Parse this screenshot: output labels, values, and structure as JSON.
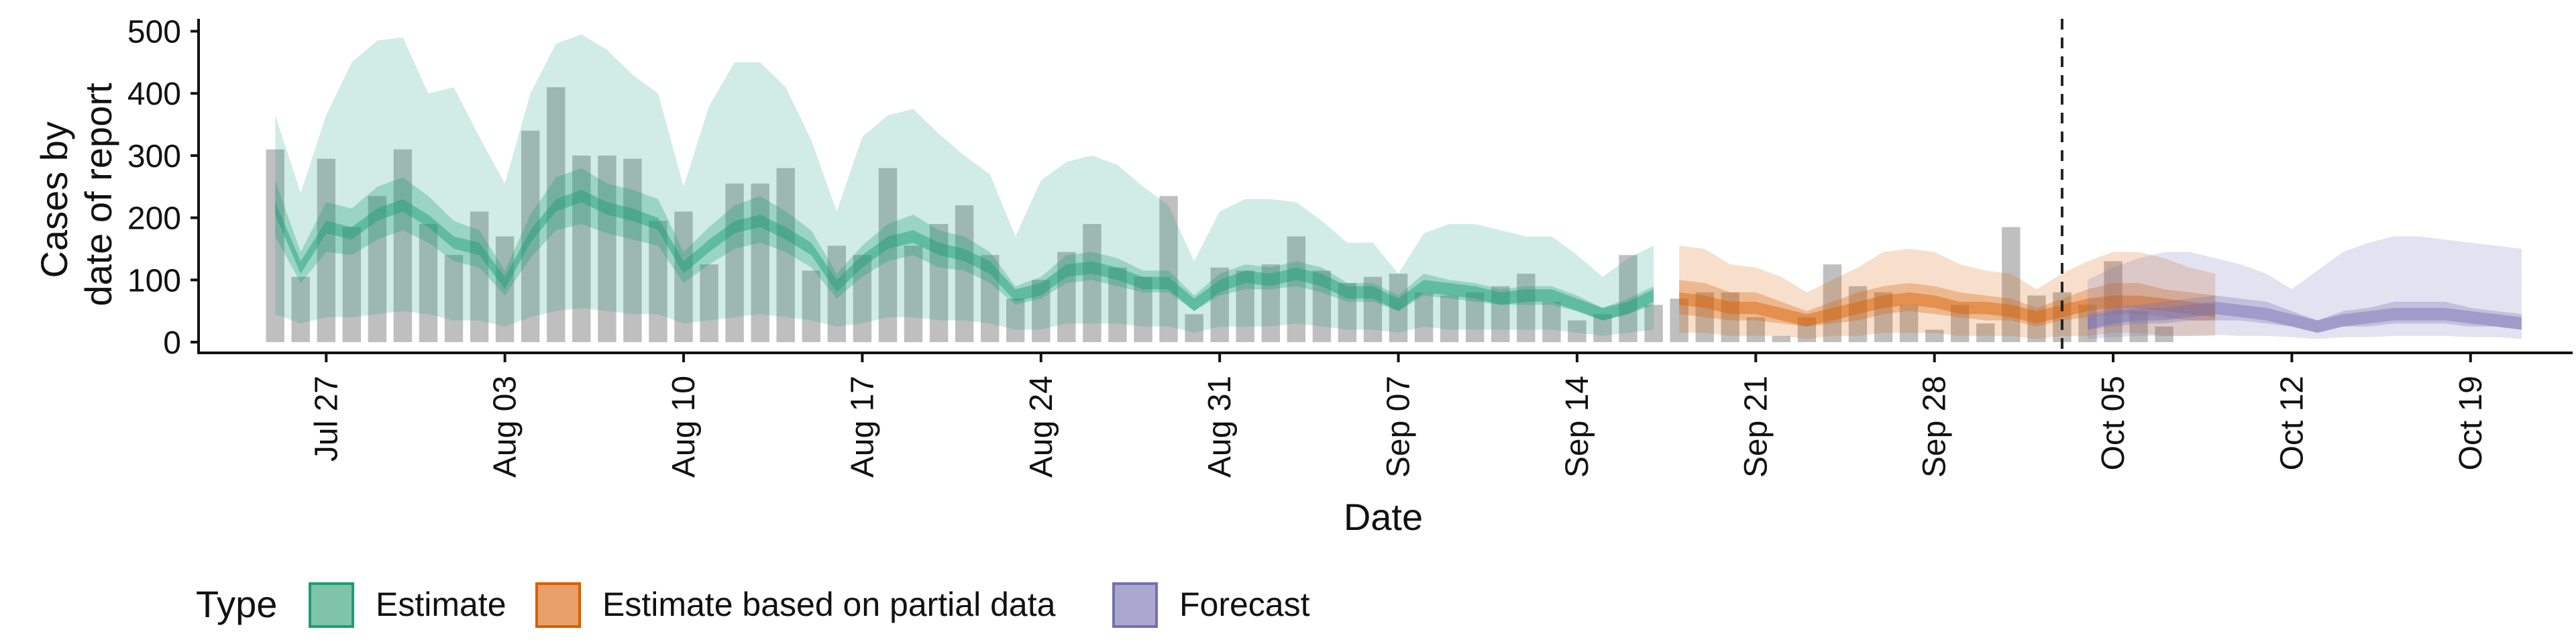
{
  "chart_data": {
    "type": "bar",
    "xlabel": "Date",
    "ylabel_lines": [
      "Cases by",
      "date of report"
    ],
    "ylim": [
      0,
      520
    ],
    "yticks": [
      0,
      100,
      200,
      300,
      400,
      500
    ],
    "xlim": [
      "2020-07-22",
      "2020-10-23"
    ],
    "xtick_labels": [
      "Jul 27",
      "Aug 03",
      "Aug 10",
      "Aug 17",
      "Aug 24",
      "Aug 31",
      "Sep 07",
      "Sep 14",
      "Sep 21",
      "Sep 28",
      "Oct 05",
      "Oct 12",
      "Oct 19"
    ],
    "xtick_dates": [
      "2020-07-27",
      "2020-08-03",
      "2020-08-10",
      "2020-08-17",
      "2020-08-24",
      "2020-08-31",
      "2020-09-07",
      "2020-09-14",
      "2020-09-21",
      "2020-09-28",
      "2020-10-05",
      "2020-10-12",
      "2020-10-19"
    ],
    "forecast_date": "2020-10-03",
    "legend": {
      "title": "Type",
      "position": "bottom",
      "entries": [
        {
          "label": "Estimate",
          "fill": "#7fc4a8",
          "stroke": "#1b9e77"
        },
        {
          "label": "Estimate based on partial data",
          "fill": "#e9a06a",
          "stroke": "#d95f02"
        },
        {
          "label": "Forecast",
          "fill": "#aba8d0",
          "stroke": "#7570b3"
        }
      ]
    },
    "colors": {
      "bars": "#a9a9a9",
      "estimate": "#1b9e77",
      "partial": "#d95f02",
      "forecast": "#7570b3"
    },
    "bars": {
      "start_date": "2020-07-25",
      "values": [
        310,
        105,
        295,
        185,
        235,
        310,
        190,
        140,
        210,
        170,
        340,
        410,
        300,
        300,
        295,
        195,
        210,
        125,
        255,
        255,
        280,
        115,
        155,
        140,
        280,
        155,
        190,
        220,
        140,
        70,
        100,
        145,
        190,
        120,
        105,
        235,
        45,
        120,
        115,
        125,
        170,
        115,
        95,
        105,
        110,
        80,
        75,
        80,
        90,
        110,
        65,
        35,
        45,
        140,
        60,
        70,
        80,
        80,
        40,
        10,
        40,
        125,
        90,
        80,
        60,
        20,
        60,
        30,
        185,
        75,
        80,
        60,
        130,
        50,
        25
      ]
    },
    "series": [
      {
        "type": "Estimate",
        "start_date": "2020-07-25",
        "median": [
          215,
          120,
          185,
          175,
          205,
          220,
          195,
          160,
          150,
          95,
          170,
          220,
          235,
          215,
          205,
          190,
          120,
          155,
          185,
          195,
          175,
          150,
          90,
          130,
          160,
          170,
          150,
          140,
          120,
          75,
          85,
          115,
          120,
          110,
          95,
          95,
          60,
          90,
          105,
          100,
          110,
          100,
          80,
          80,
          60,
          90,
          85,
          80,
          70,
          75,
          75,
          60,
          45,
          55,
          75
        ],
        "inner": [
          [
            170,
            95,
            145,
            140,
            165,
            180,
            160,
            130,
            120,
            75,
            135,
            180,
            190,
            175,
            165,
            155,
            95,
            125,
            150,
            160,
            145,
            120,
            70,
            105,
            130,
            140,
            120,
            115,
            95,
            60,
            70,
            95,
            100,
            90,
            80,
            80,
            50,
            75,
            85,
            85,
            90,
            80,
            65,
            65,
            50,
            75,
            70,
            65,
            60,
            60,
            60,
            50,
            35,
            45,
            60
          ],
          [
            260,
            145,
            225,
            215,
            250,
            265,
            235,
            195,
            180,
            115,
            205,
            265,
            280,
            255,
            245,
            230,
            145,
            185,
            220,
            235,
            210,
            180,
            110,
            155,
            190,
            205,
            180,
            170,
            145,
            90,
            105,
            140,
            145,
            135,
            115,
            115,
            75,
            110,
            125,
            120,
            130,
            120,
            95,
            95,
            75,
            110,
            100,
            95,
            85,
            90,
            90,
            75,
            55,
            70,
            90
          ]
        ],
        "outer": [
          [
            45,
            30,
            40,
            40,
            45,
            50,
            45,
            35,
            35,
            25,
            40,
            50,
            55,
            50,
            45,
            45,
            30,
            35,
            40,
            45,
            40,
            35,
            25,
            30,
            40,
            40,
            35,
            35,
            30,
            20,
            20,
            30,
            30,
            30,
            25,
            25,
            15,
            25,
            25,
            25,
            30,
            25,
            20,
            20,
            15,
            25,
            20,
            20,
            20,
            20,
            20,
            15,
            10,
            15,
            20
          ],
          [
            365,
            240,
            365,
            450,
            485,
            490,
            400,
            410,
            330,
            255,
            400,
            480,
            495,
            470,
            430,
            400,
            250,
            380,
            450,
            450,
            410,
            325,
            210,
            330,
            365,
            375,
            335,
            300,
            270,
            170,
            260,
            290,
            300,
            285,
            250,
            220,
            130,
            210,
            230,
            230,
            225,
            195,
            160,
            160,
            110,
            175,
            190,
            190,
            180,
            170,
            170,
            140,
            105,
            135,
            155
          ]
        ]
      },
      {
        "type": "Estimate based on partial data",
        "start_date": "2020-09-18",
        "median": [
          70,
          65,
          55,
          55,
          45,
          35,
          45,
          55,
          65,
          70,
          65,
          55,
          55,
          50,
          40,
          50,
          60,
          65,
          65,
          60,
          55,
          50
        ],
        "inner": [
          [
            45,
            40,
            35,
            35,
            30,
            25,
            30,
            35,
            45,
            50,
            45,
            40,
            35,
            35,
            25,
            35,
            40,
            45,
            45,
            40,
            35,
            35
          ],
          [
            100,
            95,
            80,
            80,
            65,
            50,
            65,
            80,
            90,
            95,
            90,
            80,
            75,
            70,
            55,
            70,
            85,
            95,
            95,
            85,
            80,
            75
          ]
        ],
        "outer": [
          [
            15,
            15,
            10,
            10,
            10,
            5,
            10,
            10,
            15,
            15,
            15,
            10,
            10,
            10,
            5,
            10,
            10,
            15,
            15,
            10,
            10,
            10
          ],
          [
            155,
            150,
            125,
            120,
            105,
            80,
            100,
            120,
            145,
            150,
            145,
            125,
            115,
            110,
            85,
            110,
            130,
            145,
            145,
            135,
            120,
            110
          ]
        ]
      },
      {
        "type": "Forecast",
        "start_date": "2020-10-04",
        "median": [
          30,
          40,
          45,
          45,
          50,
          55,
          50,
          45,
          35,
          25,
          35,
          40,
          45,
          45,
          45,
          40,
          35,
          30
        ],
        "inner": [
          [
            20,
            25,
            30,
            30,
            35,
            35,
            35,
            30,
            25,
            15,
            25,
            25,
            30,
            30,
            30,
            25,
            25,
            20
          ],
          [
            45,
            55,
            60,
            65,
            70,
            75,
            70,
            65,
            50,
            35,
            50,
            55,
            65,
            65,
            65,
            55,
            50,
            45
          ]
        ],
        "outer": [
          [
            5,
            8,
            10,
            10,
            10,
            12,
            10,
            10,
            8,
            5,
            8,
            8,
            10,
            10,
            10,
            8,
            8,
            5
          ],
          [
            100,
            120,
            135,
            145,
            145,
            135,
            125,
            110,
            85,
            115,
            145,
            160,
            170,
            170,
            165,
            160,
            155,
            150
          ]
        ]
      }
    ]
  }
}
